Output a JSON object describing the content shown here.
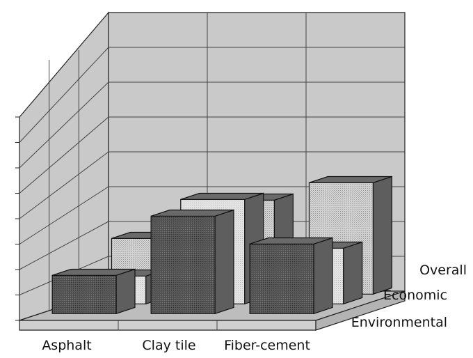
{
  "chart_data": {
    "type": "bar-3d",
    "title": "",
    "xlabel": "",
    "ylabel": "",
    "categories": [
      "Asphalt",
      "Clay tile",
      "Fiber-cement"
    ],
    "series": [
      {
        "name": "Environmental",
        "values": [
          1.1,
          2.8,
          2.0
        ],
        "fill": "#555555"
      },
      {
        "name": "Economic",
        "values": [
          0.8,
          3.0,
          1.6
        ],
        "fill": "#e4e4e4"
      },
      {
        "name": "Overall",
        "values": [
          1.6,
          2.7,
          3.2
        ],
        "fill": "#cfcfcf"
      }
    ],
    "ylim": [
      0,
      8
    ],
    "y_gridlines": 8,
    "grid": true,
    "legend_placement": "right, along depth axis"
  }
}
